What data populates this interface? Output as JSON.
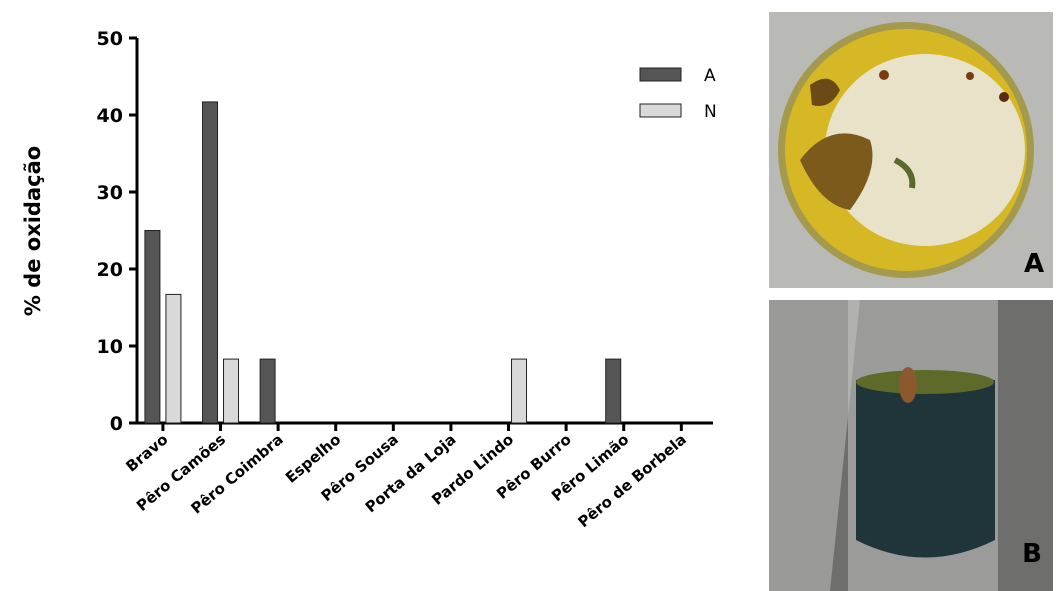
{
  "chart_data": {
    "type": "bar",
    "y_label": "% de oxidação",
    "categories": [
      "Bravo",
      "Pêro Camões",
      "Pêro Coimbra",
      "Espelho",
      "Pêro Sousa",
      "Porta da Loja",
      "Pardo Lindo",
      "Pêro Burro",
      "Pêro Limão",
      "Pêro de Borbela"
    ],
    "series": [
      {
        "name": "A",
        "color": "#555555",
        "values": [
          25,
          41.7,
          8.3,
          0,
          0,
          0,
          0,
          0,
          8.3,
          0
        ]
      },
      {
        "name": "N",
        "color": "#d9d9d9",
        "values": [
          16.7,
          8.3,
          0,
          0,
          0,
          0,
          8.3,
          0,
          0,
          0
        ]
      }
    ],
    "ylim": [
      0,
      50
    ],
    "yticks": [
      0,
      10,
      20,
      30,
      40,
      50
    ],
    "legend": "top-right"
  },
  "panels": {
    "a_label": "A",
    "b_label": "B"
  }
}
